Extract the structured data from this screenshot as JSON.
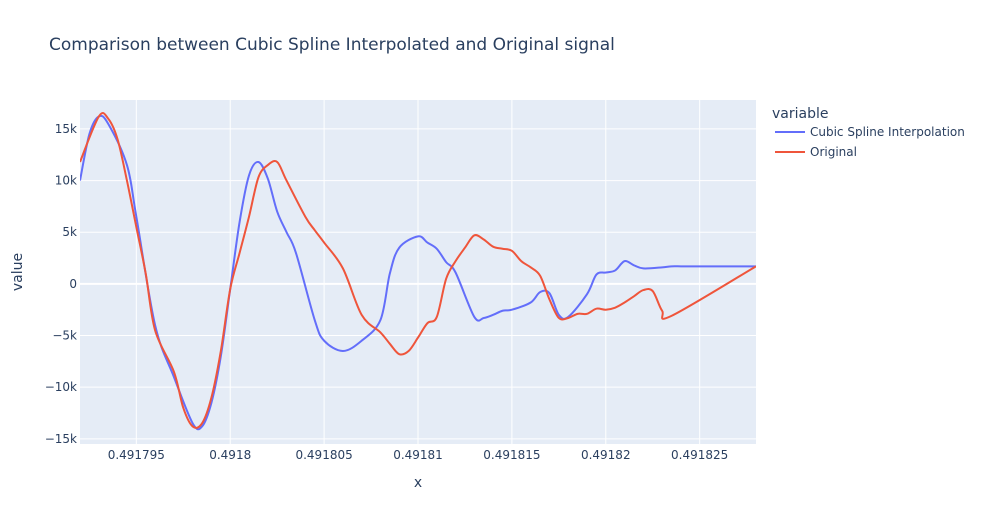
{
  "chart_data": {
    "type": "line",
    "title": "Comparison between Cubic Spline Interpolated and Original signal",
    "xlabel": "x",
    "ylabel": "value",
    "xlim": [
      0.491792,
      0.491828
    ],
    "ylim": [
      -15500,
      17800
    ],
    "x_ticks": [
      0.491795,
      0.4918,
      0.491805,
      0.49181,
      0.491815,
      0.49182,
      0.491825
    ],
    "x_tick_labels": [
      "0.491795",
      "0.4918",
      "0.491805",
      "0.49181",
      "0.491815",
      "0.49182",
      "0.491825"
    ],
    "y_ticks": [
      15000,
      10000,
      5000,
      0,
      -5000,
      -10000,
      -15000
    ],
    "y_tick_labels": [
      "15k",
      "10k",
      "5k",
      "0",
      "−5k",
      "−10k",
      "−15k"
    ],
    "grid": true,
    "plot_bg": "#e5ecf6",
    "grid_color": "#ffffff",
    "legend": {
      "title": "variable",
      "placement": "right"
    },
    "series": [
      {
        "name": "Cubic Spline Interpolation",
        "color": "#636efa",
        "x": [
          0.491792,
          0.4917925,
          0.491793,
          0.4917935,
          0.4917945,
          0.491795,
          0.491796,
          0.491797,
          0.491798,
          0.4917985,
          0.491799,
          0.4917995,
          0.4918,
          0.4918005,
          0.491801,
          0.4918015,
          0.491802,
          0.4918025,
          0.491803,
          0.4918035,
          0.4918045,
          0.491805,
          0.491806,
          0.491807,
          0.491808,
          0.4918085,
          0.491809,
          0.49181,
          0.4918105,
          0.491811,
          0.4918115,
          0.491812,
          0.491813,
          0.4918135,
          0.491814,
          0.4918145,
          0.491815,
          0.491816,
          0.4918165,
          0.491817,
          0.4918175,
          0.491818,
          0.491819,
          0.4918195,
          0.49182,
          0.4918205,
          0.491821,
          0.4918215,
          0.491822,
          0.491823,
          0.4918235,
          0.491824,
          0.4918245,
          0.491825,
          0.4918255,
          0.491826,
          0.4918265,
          0.491827,
          0.491828
        ],
        "values": [
          10000,
          14500,
          16200,
          15500,
          11500,
          6500,
          -4000,
          -9000,
          -13500,
          -13800,
          -11500,
          -7000,
          -500,
          6000,
          10500,
          11800,
          10200,
          7000,
          5000,
          3000,
          -3500,
          -5500,
          -6500,
          -5500,
          -3500,
          1000,
          3500,
          4600,
          4000,
          3400,
          2100,
          1100,
          -3200,
          -3300,
          -3000,
          -2600,
          -2500,
          -1800,
          -800,
          -900,
          -3000,
          -3200,
          -1000,
          900,
          1100,
          1300,
          2200,
          1800,
          1500,
          1600,
          1700,
          1700,
          1700,
          1700,
          1700,
          1700,
          1700,
          1700,
          1700
        ]
      },
      {
        "name": "Original",
        "color": "#ef553b",
        "x": [
          0.491792,
          0.491793,
          0.4917935,
          0.491794,
          0.4917945,
          0.491795,
          0.4917955,
          0.491796,
          0.491797,
          0.4917975,
          0.491798,
          0.4917985,
          0.491799,
          0.4917995,
          0.4918,
          0.4918005,
          0.491801,
          0.4918015,
          0.491802,
          0.4918025,
          0.491803,
          0.491804,
          0.4918045,
          0.491805,
          0.491806,
          0.491807,
          0.491808,
          0.4918085,
          0.491809,
          0.4918095,
          0.49181,
          0.4918105,
          0.491811,
          0.4918115,
          0.491812,
          0.4918125,
          0.491813,
          0.4918135,
          0.491814,
          0.4918145,
          0.491815,
          0.4918155,
          0.491816,
          0.4918165,
          0.491817,
          0.4918175,
          0.491818,
          0.4918185,
          0.491819,
          0.4918195,
          0.49182,
          0.4918205,
          0.491821,
          0.4918215,
          0.491822,
          0.4918225,
          0.491823,
          0.4918235,
          0.491828
        ],
        "values": [
          11800,
          16200,
          16000,
          14000,
          10000,
          5500,
          1000,
          -4500,
          -8500,
          -12000,
          -13800,
          -13500,
          -11000,
          -6500,
          -500,
          3000,
          6500,
          10300,
          11500,
          11800,
          10000,
          6500,
          5200,
          4000,
          1500,
          -3000,
          -4700,
          -5800,
          -6800,
          -6500,
          -5200,
          -3800,
          -3200,
          500,
          2200,
          3500,
          4700,
          4300,
          3600,
          3400,
          3200,
          2200,
          1600,
          800,
          -1500,
          -3300,
          -3300,
          -2900,
          -2900,
          -2400,
          -2500,
          -2300,
          -1800,
          -1200,
          -600,
          -700,
          -2600,
          -3100,
          1700
        ]
      }
    ]
  }
}
